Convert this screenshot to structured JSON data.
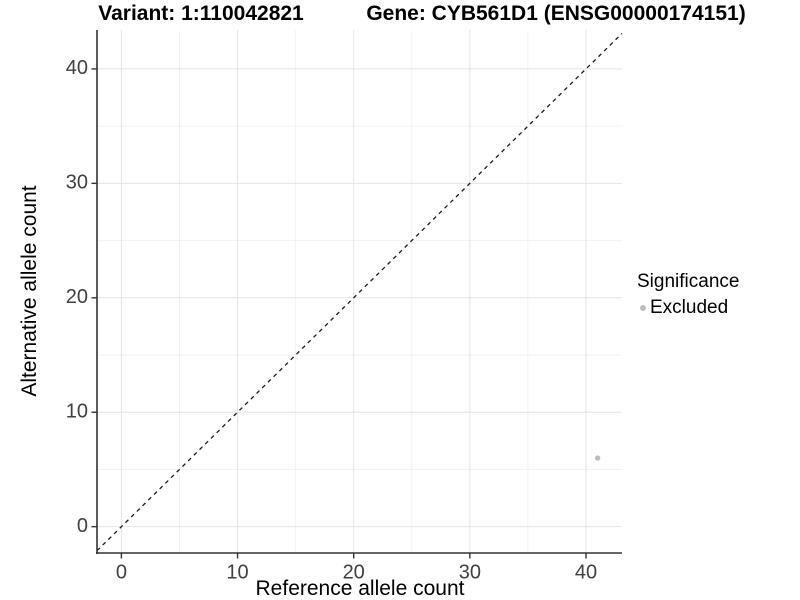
{
  "chart_data": {
    "type": "scatter",
    "titles": {
      "left": "Variant: 1:110042821",
      "right": "Gene: CYB561D1 (ENSG00000174151)"
    },
    "xlabel": "Reference allele count",
    "ylabel": "Alternative allele count",
    "xlim": [
      -2.1,
      43.1
    ],
    "ylim": [
      -2.3,
      43.4
    ],
    "x_ticks": [
      0,
      10,
      20,
      30,
      40
    ],
    "y_ticks": [
      0,
      10,
      20,
      30,
      40
    ],
    "x_minor_gridlines": [
      5,
      15,
      25,
      35
    ],
    "y_minor_gridlines": [
      5,
      15,
      25,
      35
    ],
    "grid": "major+minor",
    "identity_line": {
      "equation": "y = x",
      "style": "dashed",
      "color": "#1a1a1a"
    },
    "series": [
      {
        "name": "Excluded",
        "color": "#bdbdbd",
        "marker": "circle",
        "marker_radius_px": 2.7,
        "points": [
          [
            41,
            6
          ]
        ]
      }
    ],
    "legend": {
      "title": "Significance",
      "position": "right",
      "items": [
        {
          "label": "Excluded",
          "color": "#bdbdbd"
        }
      ]
    },
    "style": {
      "background": "#ffffff",
      "axis_line_color": "#333333",
      "tick_color": "#333333",
      "tick_label_color": "#404040",
      "grid_major_color": "#e4e4e4",
      "grid_minor_color": "#f2f2f2"
    }
  }
}
